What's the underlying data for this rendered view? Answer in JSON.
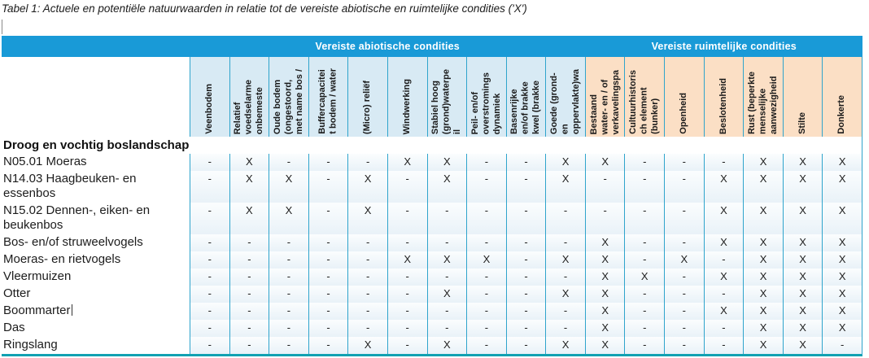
{
  "title": "Tabel 1: Actuele en potentiële natuurwaarden in relatie tot de vereiste abiotische en ruimtelijke condities ('X')",
  "colors": {
    "band_blue": "#199ad7",
    "abiotic_bg": "#d8eaf4",
    "spatial_bg": "#fbdfc5",
    "grid_line": "#2fa4cc",
    "bottom_border": "#12a1b2"
  },
  "table": {
    "group_headers": [
      {
        "label": "Vereiste abiotische condities",
        "columns": 10
      },
      {
        "label": "Vereiste ruimtelijke condities",
        "columns": 7
      }
    ],
    "columns": [
      {
        "label": "Veenbodem",
        "group": "abiotic"
      },
      {
        "label": "Relatief\nvoedselarme\nonbemeste",
        "group": "abiotic"
      },
      {
        "label": "Oude bodem\n(ongestoord,\nmet name bos /",
        "group": "abiotic"
      },
      {
        "label": "Buffercapacitei\nt bodem / water",
        "group": "abiotic"
      },
      {
        "label": "(Micro) reliëf",
        "group": "abiotic"
      },
      {
        "label": "Windwerking",
        "group": "abiotic"
      },
      {
        "label": "Stabiel hoog\n(grond)waterpe\nil",
        "group": "abiotic"
      },
      {
        "label": "Peil- en/of\noverstromings\ndynamiek",
        "group": "abiotic"
      },
      {
        "label": "Basenrijke\nen/of brakke\nkwel (brakke",
        "group": "abiotic"
      },
      {
        "label": "Goede (grond-\nen\noppervlakte)wa",
        "group": "abiotic"
      },
      {
        "label": "Bestaand\nwater- en / of\nverkavelingspa",
        "group": "spatial"
      },
      {
        "label": "Cultuurhistoris\nch element\n(bunker)",
        "group": "spatial"
      },
      {
        "label": "Openheid",
        "group": "spatial"
      },
      {
        "label": "Beslotenheid",
        "group": "spatial"
      },
      {
        "label": "Rust (beperkte\nmenselijke\naanwezigheid",
        "group": "spatial"
      },
      {
        "label": "Stilte",
        "group": "spatial"
      },
      {
        "label": "Donkerte",
        "group": "spatial"
      }
    ],
    "section_header": "Droog en vochtig boslandschap",
    "rows": [
      {
        "label": "N05.01 Moeras",
        "values": [
          "-",
          "X",
          "-",
          "-",
          "-",
          "X",
          "X",
          "-",
          "-",
          "X",
          "X",
          "-",
          "-",
          "-",
          "X",
          "X",
          "X"
        ]
      },
      {
        "label": "N14.03 Haagbeuken- en essenbos",
        "values": [
          "-",
          "X",
          "X",
          "-",
          "X",
          "-",
          "X",
          "-",
          "-",
          "X",
          "-",
          "-",
          "-",
          "X",
          "X",
          "X",
          "X"
        ]
      },
      {
        "label": "N15.02 Dennen-, eiken- en beukenbos",
        "values": [
          "-",
          "X",
          "X",
          "-",
          "X",
          "-",
          "-",
          "-",
          "-",
          "-",
          "-",
          "-",
          "-",
          "X",
          "X",
          "X",
          "X"
        ]
      },
      {
        "label": "Bos- en/of struweelvogels",
        "values": [
          "-",
          "-",
          "-",
          "-",
          "-",
          "-",
          "-",
          "-",
          "-",
          "-",
          "X",
          "-",
          "-",
          "X",
          "X",
          "X",
          "X"
        ]
      },
      {
        "label": "Moeras- en rietvogels",
        "values": [
          "-",
          "-",
          "-",
          "-",
          "-",
          "X",
          "X",
          "X",
          "-",
          "X",
          "X",
          "-",
          "X",
          "-",
          "X",
          "X",
          "X"
        ]
      },
      {
        "label": "Vleermuizen",
        "values": [
          "-",
          "-",
          "-",
          "-",
          "-",
          "-",
          "-",
          "-",
          "-",
          "-",
          "X",
          "X",
          "-",
          "X",
          "X",
          "X",
          "X"
        ]
      },
      {
        "label": "Otter",
        "values": [
          "-",
          "-",
          "-",
          "-",
          "-",
          "-",
          "X",
          "-",
          "-",
          "X",
          "X",
          "-",
          "-",
          "-",
          "X",
          "X",
          "X"
        ]
      },
      {
        "label": "Boommarter",
        "cursor_after_label": true,
        "values": [
          "-",
          "-",
          "-",
          "-",
          "-",
          "-",
          "-",
          "-",
          "-",
          "-",
          "X",
          "-",
          "-",
          "X",
          "X",
          "X",
          "X"
        ]
      },
      {
        "label": "Das",
        "values": [
          "-",
          "-",
          "-",
          "-",
          "-",
          "-",
          "-",
          "-",
          "-",
          "-",
          "X",
          "-",
          "-",
          "-",
          "X",
          "X",
          "X"
        ]
      },
      {
        "label": "Ringslang",
        "values": [
          "-",
          "-",
          "-",
          "-",
          "X",
          "-",
          "X",
          "-",
          "-",
          "X",
          "X",
          "-",
          "-",
          "-",
          "X",
          "X",
          "-"
        ]
      }
    ]
  }
}
